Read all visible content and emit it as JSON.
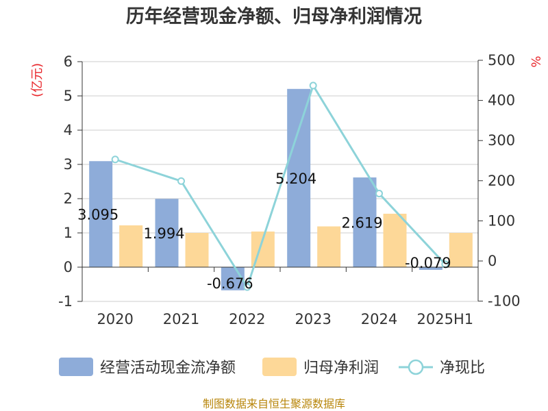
{
  "title": "历年经营现金净额、归母净利润情况",
  "source": "制图数据来自恒生聚源数据库",
  "colors": {
    "cash": "#8eacd9",
    "profit": "#fdd898",
    "ratio": "#8dd3d9",
    "unit": "#e8262b",
    "source": "#b8860b"
  },
  "chart_data": {
    "type": "bar",
    "title": "历年经营现金净额、归母净利润情况",
    "categories": [
      "2020",
      "2021",
      "2022",
      "2023",
      "2024",
      "2025H1"
    ],
    "y_left": {
      "unit": "(亿元)",
      "range": [
        -1,
        6
      ],
      "ticks": [
        "-1",
        "0",
        "1",
        "2",
        "3",
        "4",
        "5",
        "6"
      ]
    },
    "y_right": {
      "unit": "%",
      "range": [
        -100,
        500
      ],
      "ticks": [
        "-100",
        "0",
        "100",
        "200",
        "300",
        "400",
        "500"
      ]
    },
    "grid": true,
    "legend_position": "bottom",
    "series": [
      {
        "name": "经营活动现金流净额",
        "type": "bar",
        "axis": "left",
        "values": [
          3.095,
          1.994,
          -0.676,
          5.204,
          2.619,
          -0.079
        ],
        "labels": [
          "3.095",
          "1.994",
          "-0.676",
          "5.204",
          "2.619",
          "-0.079"
        ]
      },
      {
        "name": "归母净利润",
        "type": "bar",
        "axis": "left",
        "values": [
          1.22,
          1.0,
          1.04,
          1.19,
          1.56,
          1.0
        ]
      },
      {
        "name": "净现比",
        "type": "line",
        "axis": "right",
        "values": [
          253,
          199,
          -65,
          437,
          168,
          -8
        ]
      }
    ]
  }
}
